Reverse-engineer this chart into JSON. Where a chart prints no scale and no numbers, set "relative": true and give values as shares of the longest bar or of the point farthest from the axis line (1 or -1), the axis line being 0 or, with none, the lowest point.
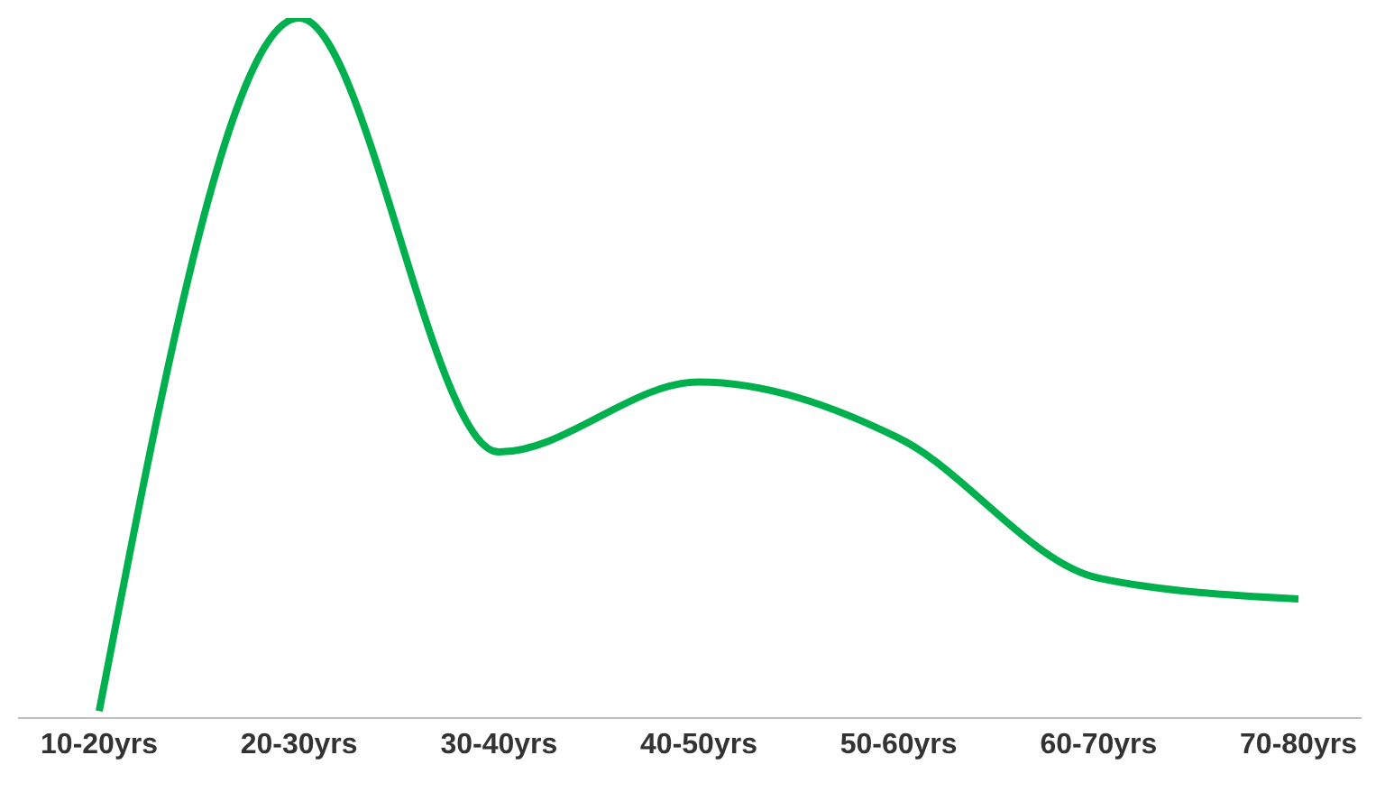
{
  "chart_data": {
    "type": "line",
    "relative": true,
    "categories": [
      "10-20yrs",
      "20-30yrs",
      "30-40yrs",
      "40-50yrs",
      "50-60yrs",
      "60-70yrs",
      "70-80yrs"
    ],
    "series": [
      {
        "color": "#00b04f",
        "values": [
          0.01,
          1,
          0.38,
          0.48,
          0.4,
          0.2,
          0.17
        ]
      }
    ],
    "grid": false,
    "legend": false,
    "marker": "none"
  }
}
